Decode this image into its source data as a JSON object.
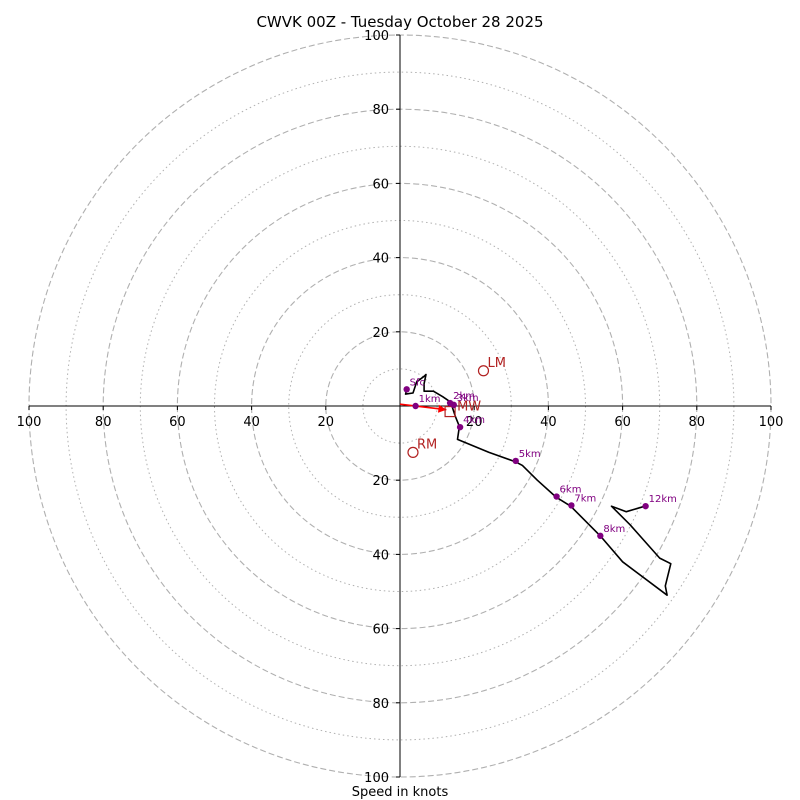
{
  "chart_data": {
    "type": "scatter",
    "subtype": "hodograph",
    "title": "CWVK 00Z - Tuesday October 28 2025",
    "xlabel": "Speed in knots",
    "range": [
      -100,
      100
    ],
    "rings": {
      "major": [
        20,
        40,
        60,
        80,
        100
      ],
      "minor": [
        10,
        30,
        50,
        70,
        90
      ]
    },
    "x_tick_labels": [
      "100",
      "80",
      "60",
      "40",
      "20",
      "20",
      "40",
      "60",
      "80",
      "100"
    ],
    "x_tick_values": [
      -100,
      -80,
      -60,
      -40,
      -20,
      20,
      40,
      60,
      80,
      100
    ],
    "y_tick_labels": [
      "100",
      "80",
      "60",
      "40",
      "20",
      "20",
      "40",
      "60",
      "80",
      "100"
    ],
    "y_tick_values": [
      100,
      80,
      60,
      40,
      20,
      -20,
      -40,
      -60,
      -80,
      -100
    ],
    "trace": [
      [
        1.8,
        4.5
      ],
      [
        1.5,
        3.2
      ],
      [
        3.5,
        3.5
      ],
      [
        4.5,
        6.5
      ],
      [
        6.5,
        8.0
      ],
      [
        7.0,
        8.5
      ],
      [
        6.5,
        6.0
      ],
      [
        6.5,
        4.0
      ],
      [
        9.0,
        4.0
      ],
      [
        11.5,
        2.5
      ],
      [
        13.0,
        1.5
      ],
      [
        14.0,
        0.0
      ],
      [
        15.0,
        -3.0
      ],
      [
        16.0,
        -5.5
      ],
      [
        15.5,
        -9.0
      ],
      [
        24.0,
        -12.5
      ],
      [
        31.0,
        -15.0
      ],
      [
        33.0,
        -16.0
      ],
      [
        37.0,
        -20.0
      ],
      [
        42.0,
        -24.5
      ],
      [
        46.0,
        -27.0
      ],
      [
        54.0,
        -35.0
      ],
      [
        60.0,
        -42.0
      ],
      [
        72.0,
        -51.0
      ],
      [
        71.5,
        -48.5
      ],
      [
        73.0,
        -42.5
      ],
      [
        70.0,
        -41.0
      ],
      [
        62.0,
        -32.0
      ],
      [
        57.0,
        -27.0
      ],
      [
        61.0,
        -28.5
      ],
      [
        66.0,
        -27.0
      ]
    ],
    "height_points": [
      {
        "label": "Sfc",
        "x": 1.8,
        "y": 4.5
      },
      {
        "label": "1km",
        "x": 4.2,
        "y": 0.0
      },
      {
        "label": "2km",
        "x": 13.5,
        "y": 0.8
      },
      {
        "label": "3km",
        "x": 14.5,
        "y": 0.3
      },
      {
        "label": "4km",
        "x": 16.2,
        "y": -5.7
      },
      {
        "label": "5km",
        "x": 31.2,
        "y": -14.8
      },
      {
        "label": "6km",
        "x": 42.2,
        "y": -24.4
      },
      {
        "label": "7km",
        "x": 46.2,
        "y": -26.8
      },
      {
        "label": "8km",
        "x": 54.0,
        "y": -35.0
      },
      {
        "label": "12km",
        "x": 66.2,
        "y": -27.0
      }
    ],
    "storm_motion": [
      {
        "label": "LM",
        "x": 22.5,
        "y": 9.5
      },
      {
        "label": "RM",
        "x": 3.5,
        "y": -12.5
      }
    ],
    "mean_wind": {
      "label": "MW",
      "x": 13.5,
      "y": -1.5
    },
    "shear_vector": {
      "from": [
        0.0,
        0.5
      ],
      "to": [
        12.5,
        -1.0
      ]
    },
    "colors": {
      "trace": "#000000",
      "height_points": "#800080",
      "storm_motion": "#b22222",
      "shear_vector": "#ff0000",
      "rings": "#b0b0b0",
      "axes": "#000000"
    }
  }
}
